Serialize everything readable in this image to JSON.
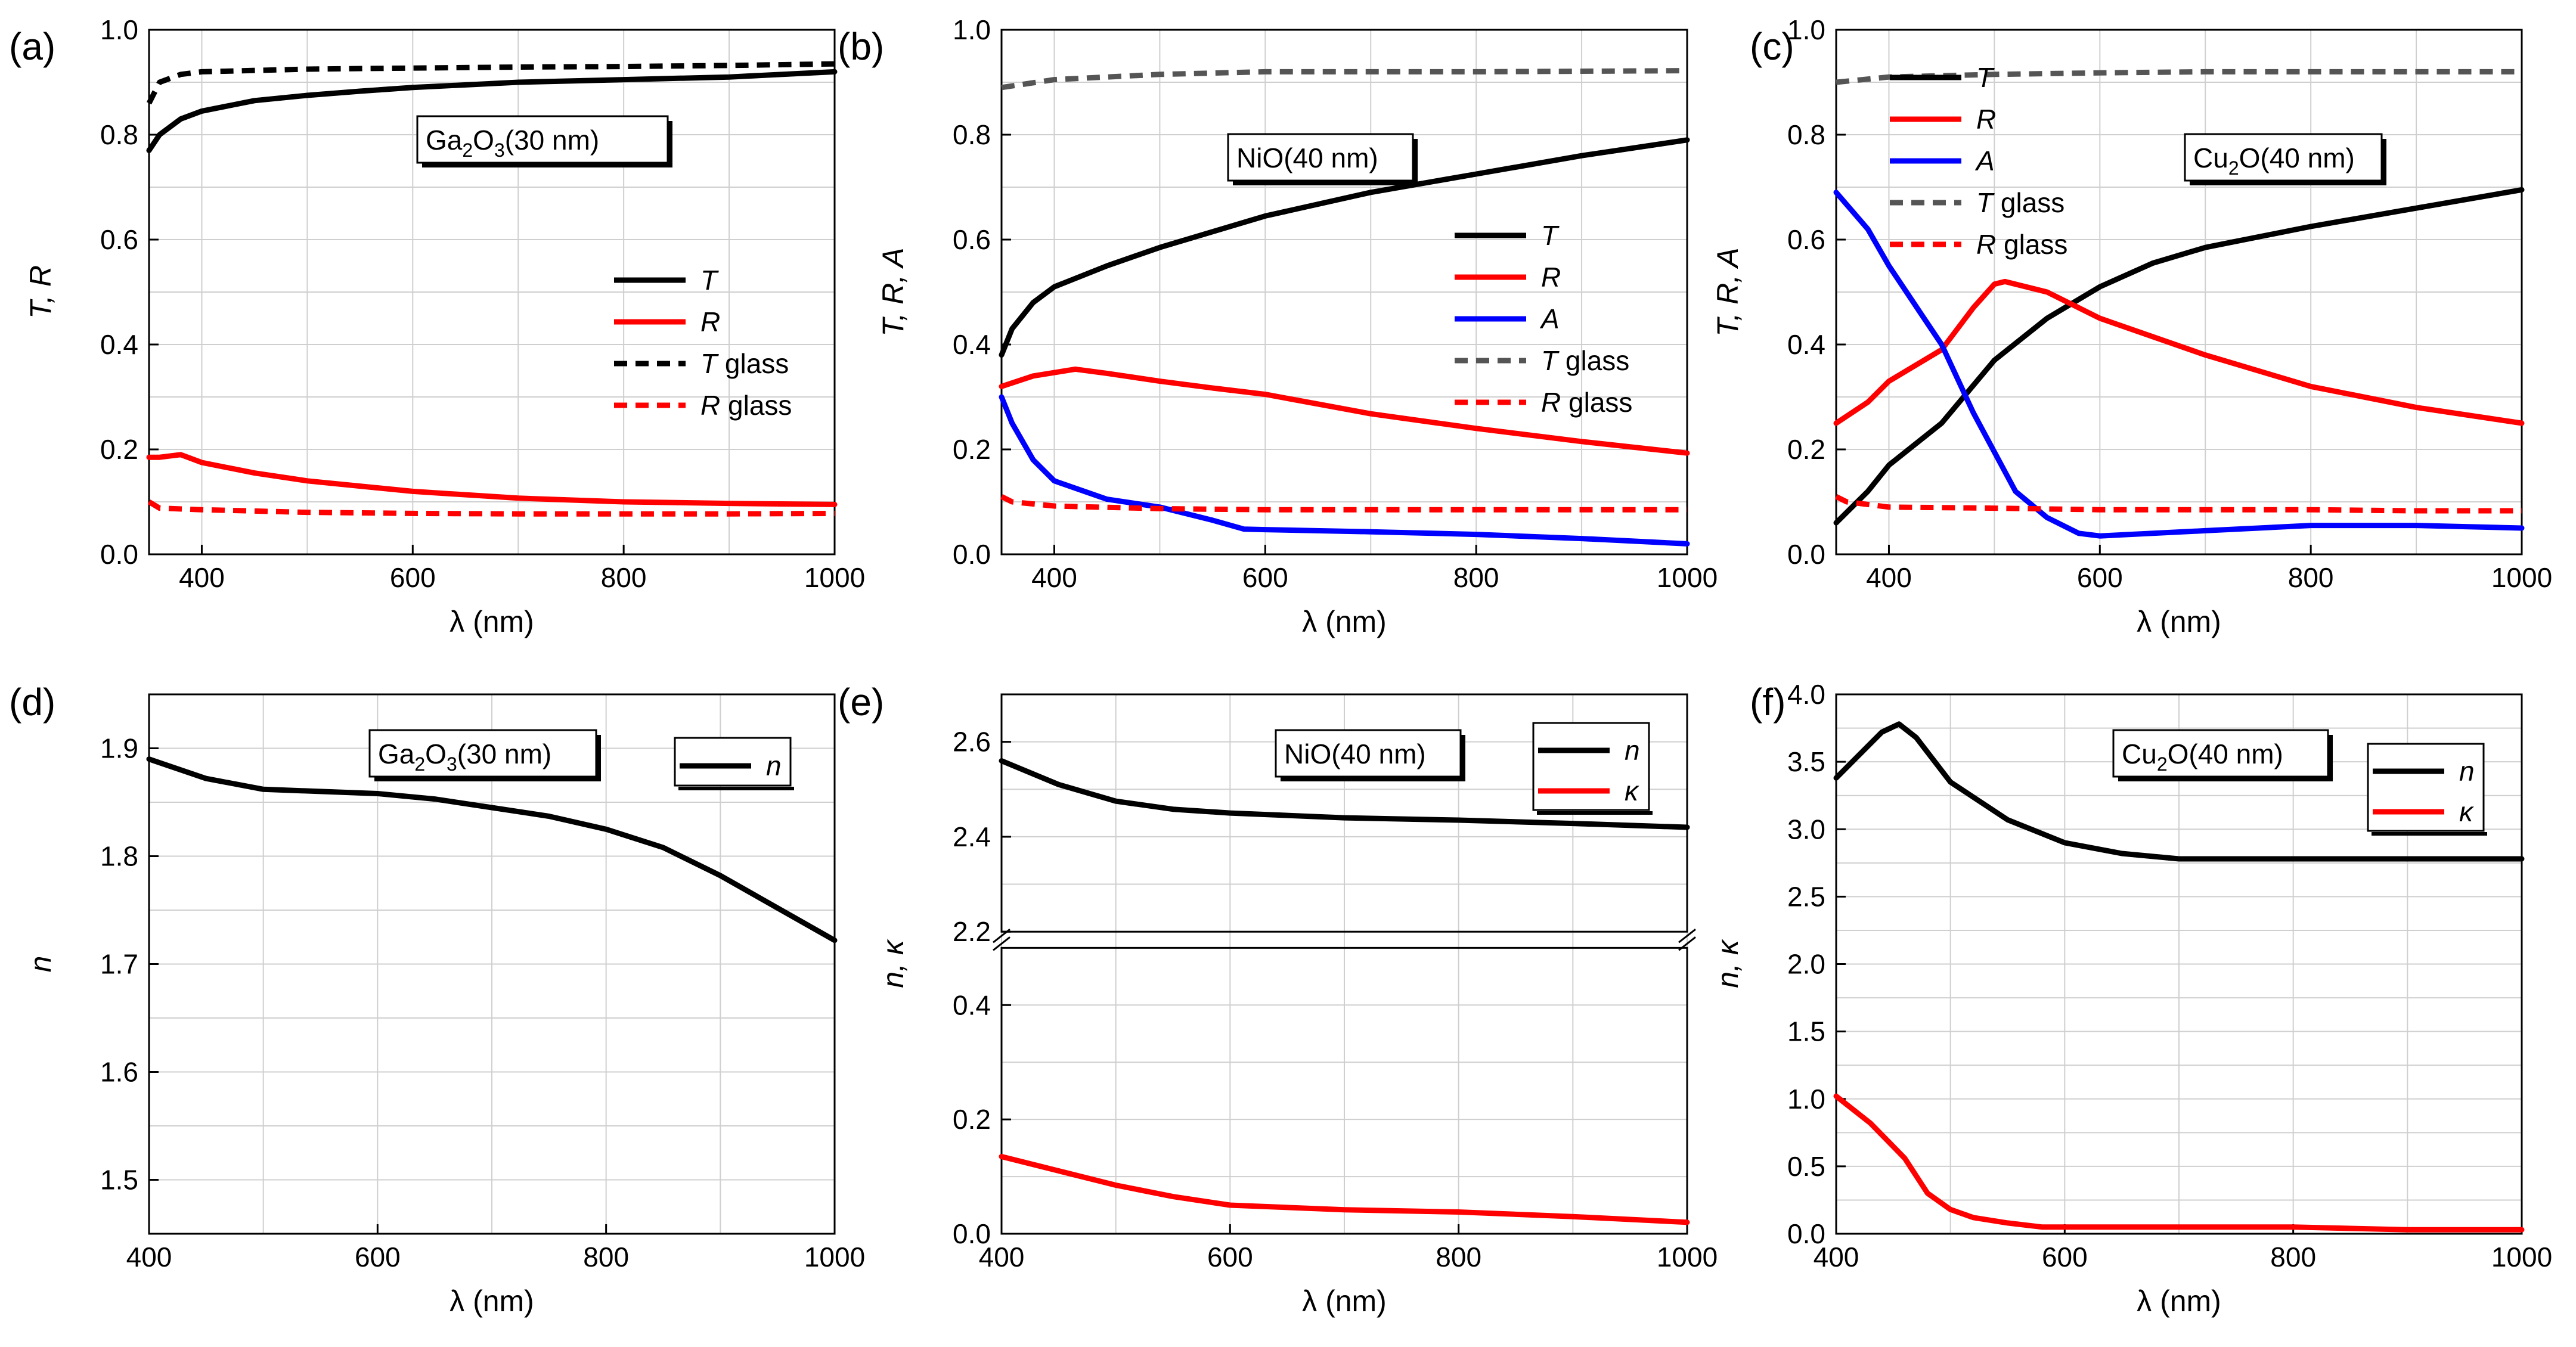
{
  "figure": {
    "colors": {
      "black": "#000000",
      "red": "#ff0000",
      "blue": "#0000ff",
      "gray": "#555555",
      "grid": "#cfcfcf"
    }
  },
  "chart_data": [
    {
      "id": "a",
      "panel_label": "(a)",
      "type": "line",
      "xlabel": "λ (nm)",
      "ylabel": "T, R",
      "xlim": [
        350,
        1000
      ],
      "ylim": [
        0,
        1.0
      ],
      "xticks": [
        400,
        600,
        800,
        1000
      ],
      "xtick_labels": [
        "400",
        "600",
        "800",
        "1000"
      ],
      "yticks": [
        0,
        0.2,
        0.4,
        0.6,
        0.8,
        1.0
      ],
      "ytick_labels": [
        "0.0",
        "0.2",
        "0.4",
        "0.6",
        "0.8",
        "1.0"
      ],
      "material_box": {
        "base": "Ga",
        "sub1": "2",
        "mid": "O",
        "sub2": "3",
        "tail": "(30 nm)"
      },
      "legend_position": "center-right",
      "series": [
        {
          "name": "T",
          "label_suffix": "",
          "color": "#000000",
          "dash": "solid",
          "x": [
            350,
            360,
            380,
            400,
            450,
            500,
            550,
            600,
            700,
            800,
            900,
            1000
          ],
          "y": [
            0.77,
            0.8,
            0.83,
            0.845,
            0.865,
            0.875,
            0.883,
            0.89,
            0.9,
            0.905,
            0.91,
            0.92
          ]
        },
        {
          "name": "R",
          "label_suffix": "",
          "color": "#ff0000",
          "dash": "solid",
          "x": [
            350,
            360,
            380,
            400,
            450,
            500,
            550,
            600,
            700,
            800,
            900,
            1000
          ],
          "y": [
            0.185,
            0.185,
            0.19,
            0.175,
            0.155,
            0.14,
            0.13,
            0.12,
            0.107,
            0.1,
            0.097,
            0.095
          ]
        },
        {
          "name": "T",
          "label_suffix": " glass",
          "color": "#000000",
          "dash": "dash",
          "x": [
            350,
            360,
            380,
            400,
            500,
            600,
            700,
            800,
            900,
            1000
          ],
          "y": [
            0.86,
            0.9,
            0.915,
            0.92,
            0.925,
            0.927,
            0.929,
            0.93,
            0.932,
            0.935
          ]
        },
        {
          "name": "R",
          "label_suffix": " glass",
          "color": "#ff0000",
          "dash": "dash",
          "x": [
            350,
            360,
            400,
            500,
            600,
            700,
            800,
            900,
            1000
          ],
          "y": [
            0.1,
            0.088,
            0.085,
            0.08,
            0.078,
            0.077,
            0.077,
            0.077,
            0.078
          ]
        }
      ]
    },
    {
      "id": "b",
      "panel_label": "(b)",
      "type": "line",
      "xlabel": "λ (nm)",
      "ylabel": "T, R, A",
      "xlim": [
        350,
        1000
      ],
      "ylim": [
        0,
        1.0
      ],
      "xticks": [
        400,
        600,
        800,
        1000
      ],
      "xtick_labels": [
        "400",
        "600",
        "800",
        "1000"
      ],
      "yticks": [
        0,
        0.2,
        0.4,
        0.6,
        0.8,
        1.0
      ],
      "ytick_labels": [
        "0.0",
        "0.2",
        "0.4",
        "0.6",
        "0.8",
        "1.0"
      ],
      "material_box": {
        "base": "NiO",
        "sub1": "",
        "mid": "",
        "sub2": "",
        "tail": "(40 nm)"
      },
      "legend_position": "center-right",
      "series": [
        {
          "name": "T",
          "label_suffix": "",
          "color": "#000000",
          "dash": "solid",
          "x": [
            350,
            360,
            380,
            400,
            450,
            500,
            550,
            600,
            700,
            800,
            900,
            1000
          ],
          "y": [
            0.38,
            0.43,
            0.48,
            0.51,
            0.55,
            0.585,
            0.615,
            0.645,
            0.69,
            0.725,
            0.76,
            0.79
          ]
        },
        {
          "name": "R",
          "label_suffix": "",
          "color": "#ff0000",
          "dash": "solid",
          "x": [
            350,
            380,
            420,
            450,
            500,
            550,
            600,
            700,
            800,
            900,
            1000
          ],
          "y": [
            0.32,
            0.34,
            0.353,
            0.345,
            0.33,
            0.317,
            0.305,
            0.268,
            0.24,
            0.215,
            0.193
          ]
        },
        {
          "name": "A",
          "label_suffix": "",
          "color": "#0000ff",
          "dash": "solid",
          "x": [
            350,
            360,
            380,
            400,
            450,
            500,
            550,
            580,
            600,
            700,
            800,
            900,
            1000
          ],
          "y": [
            0.3,
            0.25,
            0.18,
            0.14,
            0.105,
            0.09,
            0.065,
            0.048,
            0.047,
            0.043,
            0.038,
            0.03,
            0.02
          ]
        },
        {
          "name": "T",
          "label_suffix": " glass",
          "color": "#555555",
          "dash": "dash",
          "x": [
            350,
            400,
            500,
            600,
            700,
            800,
            900,
            1000
          ],
          "y": [
            0.89,
            0.905,
            0.915,
            0.92,
            0.92,
            0.92,
            0.921,
            0.922
          ]
        },
        {
          "name": "R",
          "label_suffix": " glass",
          "color": "#ff0000",
          "dash": "dash",
          "x": [
            350,
            360,
            400,
            500,
            600,
            700,
            800,
            900,
            1000
          ],
          "y": [
            0.11,
            0.1,
            0.092,
            0.087,
            0.085,
            0.085,
            0.085,
            0.085,
            0.085
          ]
        }
      ]
    },
    {
      "id": "c",
      "panel_label": "(c)",
      "type": "line",
      "xlabel": "λ (nm)",
      "ylabel": "T, R, A",
      "xlim": [
        350,
        1000
      ],
      "ylim": [
        0,
        1.0
      ],
      "xticks": [
        400,
        600,
        800,
        1000
      ],
      "xtick_labels": [
        "400",
        "600",
        "800",
        "1000"
      ],
      "yticks": [
        0,
        0.2,
        0.4,
        0.6,
        0.8,
        1.0
      ],
      "ytick_labels": [
        "0.0",
        "0.2",
        "0.4",
        "0.6",
        "0.8",
        "1.0"
      ],
      "material_box": {
        "base": "Cu",
        "sub1": "2",
        "mid": "O",
        "sub2": "",
        "tail": "(40 nm)"
      },
      "legend_position": "top-left",
      "series": [
        {
          "name": "T",
          "label_suffix": "",
          "color": "#000000",
          "dash": "solid",
          "x": [
            350,
            380,
            400,
            450,
            500,
            550,
            600,
            650,
            700,
            800,
            900,
            1000
          ],
          "y": [
            0.06,
            0.12,
            0.17,
            0.25,
            0.37,
            0.45,
            0.51,
            0.555,
            0.585,
            0.625,
            0.66,
            0.695
          ]
        },
        {
          "name": "R",
          "label_suffix": "",
          "color": "#ff0000",
          "dash": "solid",
          "x": [
            350,
            380,
            400,
            450,
            480,
            500,
            510,
            550,
            600,
            700,
            800,
            900,
            1000
          ],
          "y": [
            0.25,
            0.29,
            0.33,
            0.39,
            0.47,
            0.515,
            0.52,
            0.5,
            0.45,
            0.38,
            0.32,
            0.28,
            0.25
          ]
        },
        {
          "name": "A",
          "label_suffix": "",
          "color": "#0000ff",
          "dash": "solid",
          "x": [
            350,
            380,
            400,
            430,
            450,
            480,
            520,
            550,
            580,
            600,
            700,
            800,
            900,
            1000
          ],
          "y": [
            0.69,
            0.62,
            0.55,
            0.46,
            0.4,
            0.27,
            0.12,
            0.07,
            0.04,
            0.035,
            0.045,
            0.055,
            0.055,
            0.05
          ]
        },
        {
          "name": "T",
          "label_suffix": " glass",
          "color": "#555555",
          "dash": "dash",
          "x": [
            350,
            400,
            500,
            600,
            700,
            800,
            900,
            1000
          ],
          "y": [
            0.9,
            0.91,
            0.915,
            0.918,
            0.92,
            0.92,
            0.92,
            0.92
          ]
        },
        {
          "name": "R",
          "label_suffix": " glass",
          "color": "#ff0000",
          "dash": "dash",
          "x": [
            350,
            360,
            400,
            500,
            600,
            700,
            800,
            900,
            1000
          ],
          "y": [
            0.11,
            0.1,
            0.09,
            0.088,
            0.085,
            0.085,
            0.085,
            0.083,
            0.083
          ]
        }
      ]
    },
    {
      "id": "d",
      "panel_label": "(d)",
      "type": "line",
      "xlabel": "λ (nm)",
      "ylabel": "n",
      "xlim": [
        400,
        1000
      ],
      "ylim": [
        1.45,
        1.95
      ],
      "xticks": [
        400,
        600,
        800,
        1000
      ],
      "xtick_labels": [
        "400",
        "600",
        "800",
        "1000"
      ],
      "yticks": [
        1.5,
        1.6,
        1.7,
        1.8,
        1.9
      ],
      "ytick_labels": [
        "1.5",
        "1.6",
        "1.7",
        "1.8",
        "1.9"
      ],
      "material_box": {
        "base": "Ga",
        "sub1": "2",
        "mid": "O",
        "sub2": "3",
        "tail": "(30 nm)"
      },
      "legend_position": "top-right",
      "series": [
        {
          "name": "n",
          "label_suffix": "",
          "color": "#000000",
          "dash": "solid",
          "x": [
            400,
            450,
            500,
            550,
            600,
            650,
            700,
            750,
            800,
            850,
            900,
            950,
            1000
          ],
          "y": [
            1.89,
            1.872,
            1.862,
            1.86,
            1.858,
            1.853,
            1.845,
            1.837,
            1.825,
            1.808,
            1.782,
            1.752,
            1.722
          ]
        }
      ]
    },
    {
      "id": "e",
      "panel_label": "(e)",
      "type": "line",
      "xlabel": "λ (nm)",
      "ylabel": "n, κ",
      "xlim": [
        400,
        1000
      ],
      "broken_axis": true,
      "segments": [
        {
          "ylim": [
            0,
            0.5
          ],
          "yticks": [
            0,
            0.2,
            0.4
          ],
          "ytick_labels": [
            "0.0",
            "0.2",
            "0.4"
          ]
        },
        {
          "ylim": [
            2.2,
            2.7
          ],
          "yticks": [
            2.2,
            2.4,
            2.6
          ],
          "ytick_labels": [
            "2.2",
            "2.4",
            "2.6"
          ]
        }
      ],
      "xticks": [
        400,
        600,
        800,
        1000
      ],
      "xtick_labels": [
        "400",
        "600",
        "800",
        "1000"
      ],
      "material_box": {
        "base": "NiO",
        "sub1": "",
        "mid": "",
        "sub2": "",
        "tail": "(40 nm)"
      },
      "legend_position": "top-right",
      "series": [
        {
          "name": "n",
          "label_suffix": "",
          "color": "#000000",
          "dash": "solid",
          "segment": 1,
          "x": [
            400,
            450,
            500,
            550,
            600,
            700,
            800,
            900,
            1000
          ],
          "y": [
            2.56,
            2.51,
            2.475,
            2.458,
            2.45,
            2.44,
            2.435,
            2.428,
            2.42
          ]
        },
        {
          "name": "κ",
          "label_suffix": "",
          "color": "#ff0000",
          "dash": "solid",
          "segment": 0,
          "x": [
            400,
            450,
            500,
            550,
            600,
            700,
            800,
            900,
            1000
          ],
          "y": [
            0.135,
            0.11,
            0.085,
            0.065,
            0.05,
            0.042,
            0.038,
            0.03,
            0.02
          ]
        }
      ]
    },
    {
      "id": "f",
      "panel_label": "(f)",
      "type": "line",
      "xlabel": "λ (nm)",
      "ylabel": "n, κ",
      "xlim": [
        400,
        1000
      ],
      "ylim": [
        0,
        4.0
      ],
      "xticks": [
        400,
        600,
        800,
        1000
      ],
      "xtick_labels": [
        "400",
        "600",
        "800",
        "1000"
      ],
      "yticks": [
        0,
        0.5,
        1.0,
        1.5,
        2.0,
        2.5,
        3.0,
        3.5,
        4.0
      ],
      "ytick_labels": [
        "0.0",
        "0.5",
        "1.0",
        "1.5",
        "2.0",
        "2.5",
        "3.0",
        "3.5",
        "4.0"
      ],
      "material_box": {
        "base": "Cu",
        "sub1": "2",
        "mid": "O",
        "sub2": "",
        "tail": "(40 nm)"
      },
      "legend_position": "top-right",
      "series": [
        {
          "name": "n",
          "label_suffix": "",
          "color": "#000000",
          "dash": "solid",
          "x": [
            400,
            420,
            440,
            455,
            470,
            500,
            550,
            600,
            650,
            700,
            800,
            900,
            1000
          ],
          "y": [
            3.38,
            3.55,
            3.72,
            3.78,
            3.68,
            3.35,
            3.07,
            2.9,
            2.82,
            2.78,
            2.78,
            2.78,
            2.78
          ]
        },
        {
          "name": "κ",
          "label_suffix": "",
          "color": "#ff0000",
          "dash": "solid",
          "x": [
            400,
            430,
            460,
            480,
            500,
            520,
            550,
            580,
            600,
            700,
            800,
            900,
            1000
          ],
          "y": [
            1.02,
            0.82,
            0.56,
            0.3,
            0.18,
            0.12,
            0.08,
            0.05,
            0.05,
            0.05,
            0.05,
            0.03,
            0.03
          ]
        }
      ]
    }
  ]
}
